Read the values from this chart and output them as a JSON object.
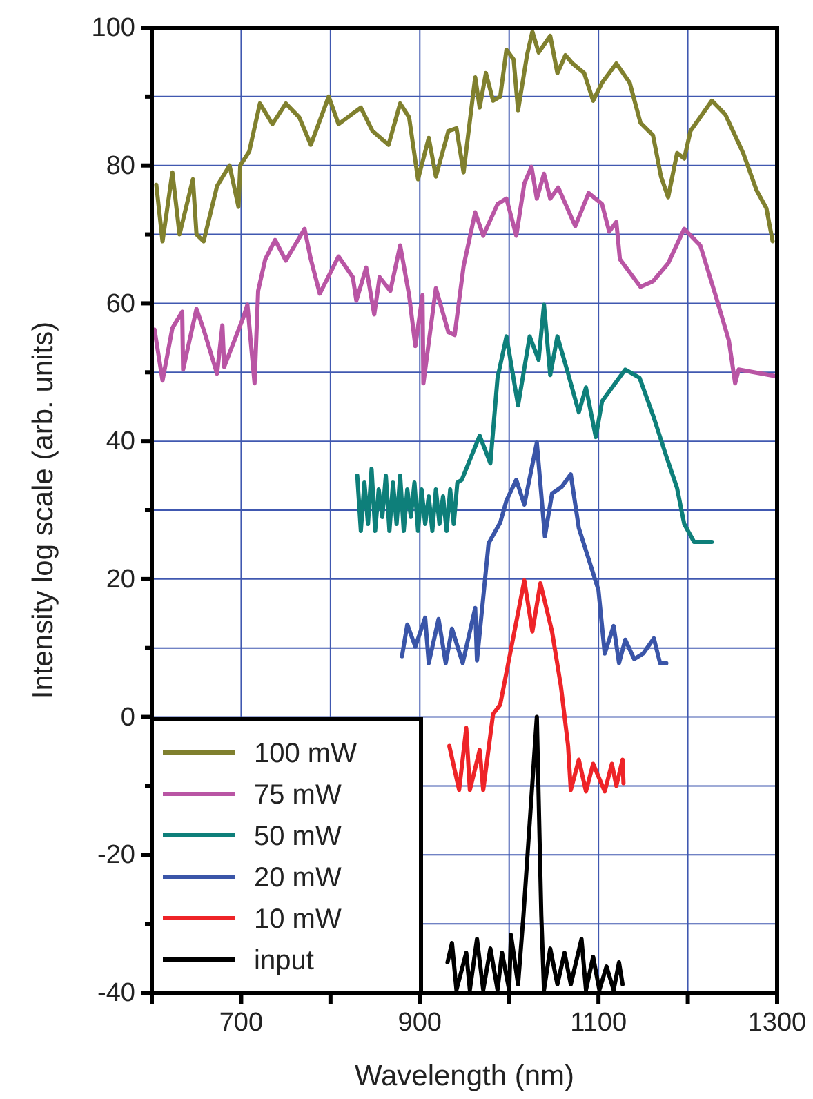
{
  "chart_data": {
    "type": "line",
    "xlabel": "Wavelength (nm)",
    "ylabel": "Intensity log scale (arb. units)",
    "xlim": [
      600,
      1300
    ],
    "xticks": [
      {
        "value": 600,
        "label": null
      },
      700,
      {
        "value": 800,
        "label": null
      },
      900,
      {
        "value": 1000,
        "label": null
      },
      1100,
      {
        "value": 1200,
        "label": null
      },
      1300
    ],
    "ylim": [
      -40,
      100
    ],
    "yticks": [
      -40,
      {
        "value": -30,
        "label": null
      },
      -20,
      {
        "value": -10,
        "label": null
      },
      0,
      {
        "value": 10,
        "label": null
      },
      20,
      {
        "value": 30,
        "label": null
      },
      40,
      {
        "value": 50,
        "label": null
      },
      60,
      {
        "value": 70,
        "label": null
      },
      80,
      {
        "value": 90,
        "label": null
      },
      100
    ],
    "grid": true,
    "legend": "bottom left",
    "marker": "none",
    "line_style": "solid",
    "series": [
      {
        "name": "100 mW",
        "color": "#80802e",
        "x": [
          605,
          612,
          623,
          631,
          646,
          650,
          658,
          673,
          687,
          697,
          699,
          709,
          721,
          735,
          750,
          765,
          778,
          798,
          809,
          834,
          847,
          865,
          878,
          888,
          898,
          910,
          918,
          932,
          941,
          949,
          962,
          967,
          974,
          982,
          990,
          997,
          1005,
          1010,
          1020,
          1026,
          1033,
          1046,
          1054,
          1063,
          1071,
          1084,
          1094,
          1104,
          1120,
          1135,
          1147,
          1161,
          1170,
          1178,
          1188,
          1196,
          1203,
          1227,
          1242,
          1262,
          1277,
          1288,
          1295
        ],
        "values": [
          77.2,
          69,
          79,
          70,
          78,
          70,
          69,
          77,
          80,
          74,
          80,
          82,
          89,
          86,
          89,
          87,
          83,
          90,
          86,
          88.4,
          85,
          83,
          89,
          87,
          78,
          84,
          78.4,
          85,
          85.4,
          79,
          92.8,
          88.4,
          93.4,
          89.4,
          90,
          96.8,
          95.4,
          88,
          96,
          99.4,
          96.4,
          98.8,
          93.4,
          96,
          94.8,
          93.4,
          89.4,
          92,
          94.8,
          92,
          86.2,
          84.4,
          78.4,
          75.4,
          81.8,
          81,
          85,
          89.4,
          87.4,
          81.8,
          76.4,
          73.8,
          69
        ]
      },
      {
        "name": "75 mW",
        "color": "#b955a4",
        "x": [
          603,
          612,
          623,
          634,
          635,
          650,
          658,
          673,
          679,
          681,
          702,
          707,
          715,
          719,
          727,
          738,
          750,
          771,
          778,
          788,
          809,
          825,
          829,
          840,
          849,
          855,
          867,
          878,
          888,
          895,
          903,
          904,
          918,
          932,
          939,
          949,
          962,
          971,
          987,
          997,
          1008,
          1017,
          1025,
          1031,
          1039,
          1046,
          1055,
          1074,
          1089,
          1104,
          1112,
          1120,
          1124,
          1147,
          1161,
          1178,
          1196,
          1214,
          1231,
          1246,
          1253,
          1257,
          1300
        ],
        "values": [
          56.2,
          48.8,
          56.4,
          58.8,
          50.4,
          59.2,
          56.2,
          49.8,
          56.8,
          50.8,
          57.8,
          59.8,
          48.4,
          61.8,
          66.4,
          69.2,
          66.2,
          70.8,
          66.4,
          61.4,
          66.8,
          63.8,
          60.4,
          65.2,
          58.4,
          63.8,
          61.8,
          68.4,
          61.2,
          53.8,
          61.2,
          48.4,
          62.2,
          55.8,
          55.4,
          65.4,
          73.2,
          69.8,
          74.4,
          75.2,
          69.8,
          77.4,
          79.8,
          75.2,
          78.8,
          75.2,
          76.8,
          71.2,
          76,
          74.4,
          70.4,
          71.8,
          66.4,
          62.4,
          63.2,
          65.8,
          70.8,
          68.4,
          61.2,
          54.6,
          48.4,
          50.4,
          49.4
        ]
      },
      {
        "name": "50 mW",
        "color": "#0e7f7a",
        "x": [
          830,
          834,
          838,
          842,
          846,
          850,
          854,
          858,
          862,
          866,
          870,
          874,
          878,
          882,
          886,
          890,
          894,
          898,
          902,
          906,
          910,
          914,
          918,
          922,
          926,
          930,
          934,
          938,
          942,
          947,
          967,
          979,
          987,
          997,
          1010,
          1023,
          1033,
          1039,
          1046,
          1054,
          1066,
          1078,
          1086,
          1097,
          1104,
          1130,
          1146,
          1161,
          1176,
          1188,
          1196,
          1207,
          1227
        ],
        "values": [
          35,
          27,
          34,
          28,
          36,
          27,
          33,
          29,
          35,
          27,
          34,
          28,
          35,
          27,
          33,
          29,
          34,
          27,
          33,
          28,
          32,
          27,
          33,
          28,
          32,
          27,
          33,
          28,
          34,
          34.4,
          40.8,
          36.8,
          49.2,
          55.2,
          45.2,
          55.2,
          51.8,
          59.8,
          49.6,
          55.2,
          49.8,
          44.2,
          47.8,
          40.6,
          45.8,
          50.4,
          49.2,
          43.8,
          37.8,
          33.2,
          28,
          25.4,
          25.4
        ]
      },
      {
        "name": "20 mW",
        "color": "#3a55a8",
        "x": [
          880,
          886,
          895,
          906,
          910,
          921,
          929,
          936,
          948,
          962,
          964,
          977,
          990,
          997,
          1008,
          1017,
          1031,
          1040,
          1048,
          1059,
          1069,
          1078,
          1100,
          1107,
          1117,
          1123,
          1130,
          1140,
          1150,
          1162,
          1169,
          1176
        ],
        "values": [
          8.8,
          13.4,
          10.2,
          14.4,
          7.8,
          14.2,
          7.8,
          12.8,
          7.8,
          15.8,
          8.2,
          25.2,
          28.2,
          31.4,
          34.4,
          30.8,
          39.8,
          26.2,
          32.4,
          33.4,
          35.2,
          27.4,
          18.4,
          9.2,
          13.2,
          7.8,
          11.2,
          8.4,
          9.2,
          11.4,
          7.8,
          7.8
        ]
      },
      {
        "name": "10 mW",
        "color": "#ee2428",
        "x": [
          933,
          944,
          952,
          956,
          967,
          971,
          982,
          990,
          1002,
          1017,
          1026,
          1035,
          1048,
          1058,
          1066,
          1069,
          1078,
          1086,
          1094,
          1107,
          1115,
          1120,
          1127,
          1128
        ],
        "values": [
          -4.2,
          -10.6,
          -1.6,
          -10.6,
          -4.8,
          -10.6,
          0.4,
          1.8,
          9.8,
          19.8,
          12.4,
          19.4,
          12.4,
          4.4,
          -4.2,
          -10.6,
          -6.2,
          -10.8,
          -6.8,
          -10.8,
          -6.8,
          -10,
          -6.2,
          -9.6
        ]
      },
      {
        "name": "input",
        "color": "#000000",
        "x": [
          931,
          936,
          941,
          952,
          956,
          964,
          971,
          979,
          987,
          992,
          1000,
          1002,
          1010,
          1016,
          1031,
          1036,
          1039,
          1046,
          1054,
          1062,
          1069,
          1081,
          1086,
          1094,
          1101,
          1109,
          1117,
          1123,
          1127
        ],
        "values": [
          -35.6,
          -32.8,
          -39.6,
          -34.2,
          -39.6,
          -32.2,
          -39.6,
          -33.6,
          -39.6,
          -34.2,
          -39.6,
          -31.6,
          -38.8,
          -28.8,
          0,
          -28.8,
          -39.6,
          -33.6,
          -38.8,
          -34.2,
          -38.8,
          -32.2,
          -39.6,
          -34.8,
          -39.6,
          -36.2,
          -39.6,
          -35.6,
          -38.8
        ]
      }
    ]
  }
}
